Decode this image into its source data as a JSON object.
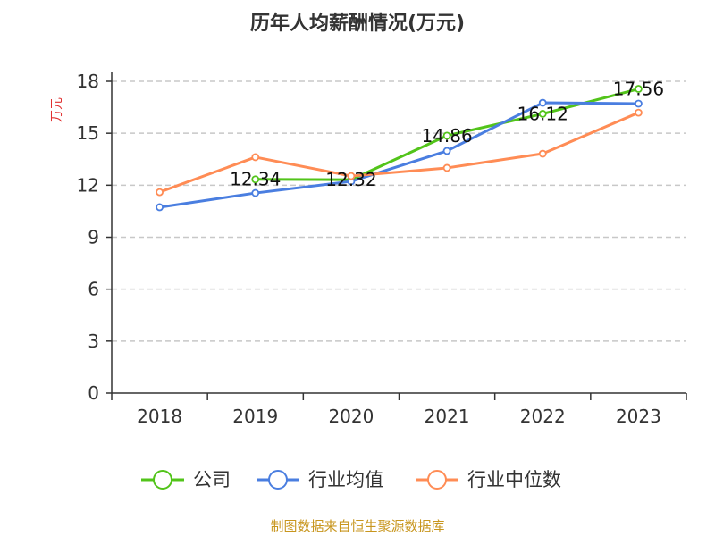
{
  "chart_data": {
    "type": "line",
    "title": "历年人均薪酬情况(万元)",
    "ylabel": "万元",
    "xlabel": "",
    "categories": [
      "2018",
      "2019",
      "2020",
      "2021",
      "2022",
      "2023"
    ],
    "ylim": [
      0,
      18
    ],
    "yticks": [
      0,
      3,
      6,
      9,
      12,
      15,
      18
    ],
    "grid": true,
    "legend_position": "bottom",
    "series": [
      {
        "name": "公司",
        "color": "#52c41a",
        "values": [
          null,
          12.34,
          12.32,
          14.86,
          16.12,
          17.56
        ],
        "data_labels": [
          "",
          "12.34",
          "12.32",
          "14.86",
          "16.12",
          "17.56"
        ]
      },
      {
        "name": "行业均值",
        "color": "#4a7ee0",
        "values": [
          10.73,
          11.55,
          12.22,
          13.98,
          16.76,
          16.71
        ]
      },
      {
        "name": "行业中位数",
        "color": "#ff8c55",
        "values": [
          11.6,
          13.62,
          12.53,
          13.0,
          13.82,
          16.19
        ]
      }
    ],
    "source": "制图数据来自恒生聚源数据库"
  }
}
